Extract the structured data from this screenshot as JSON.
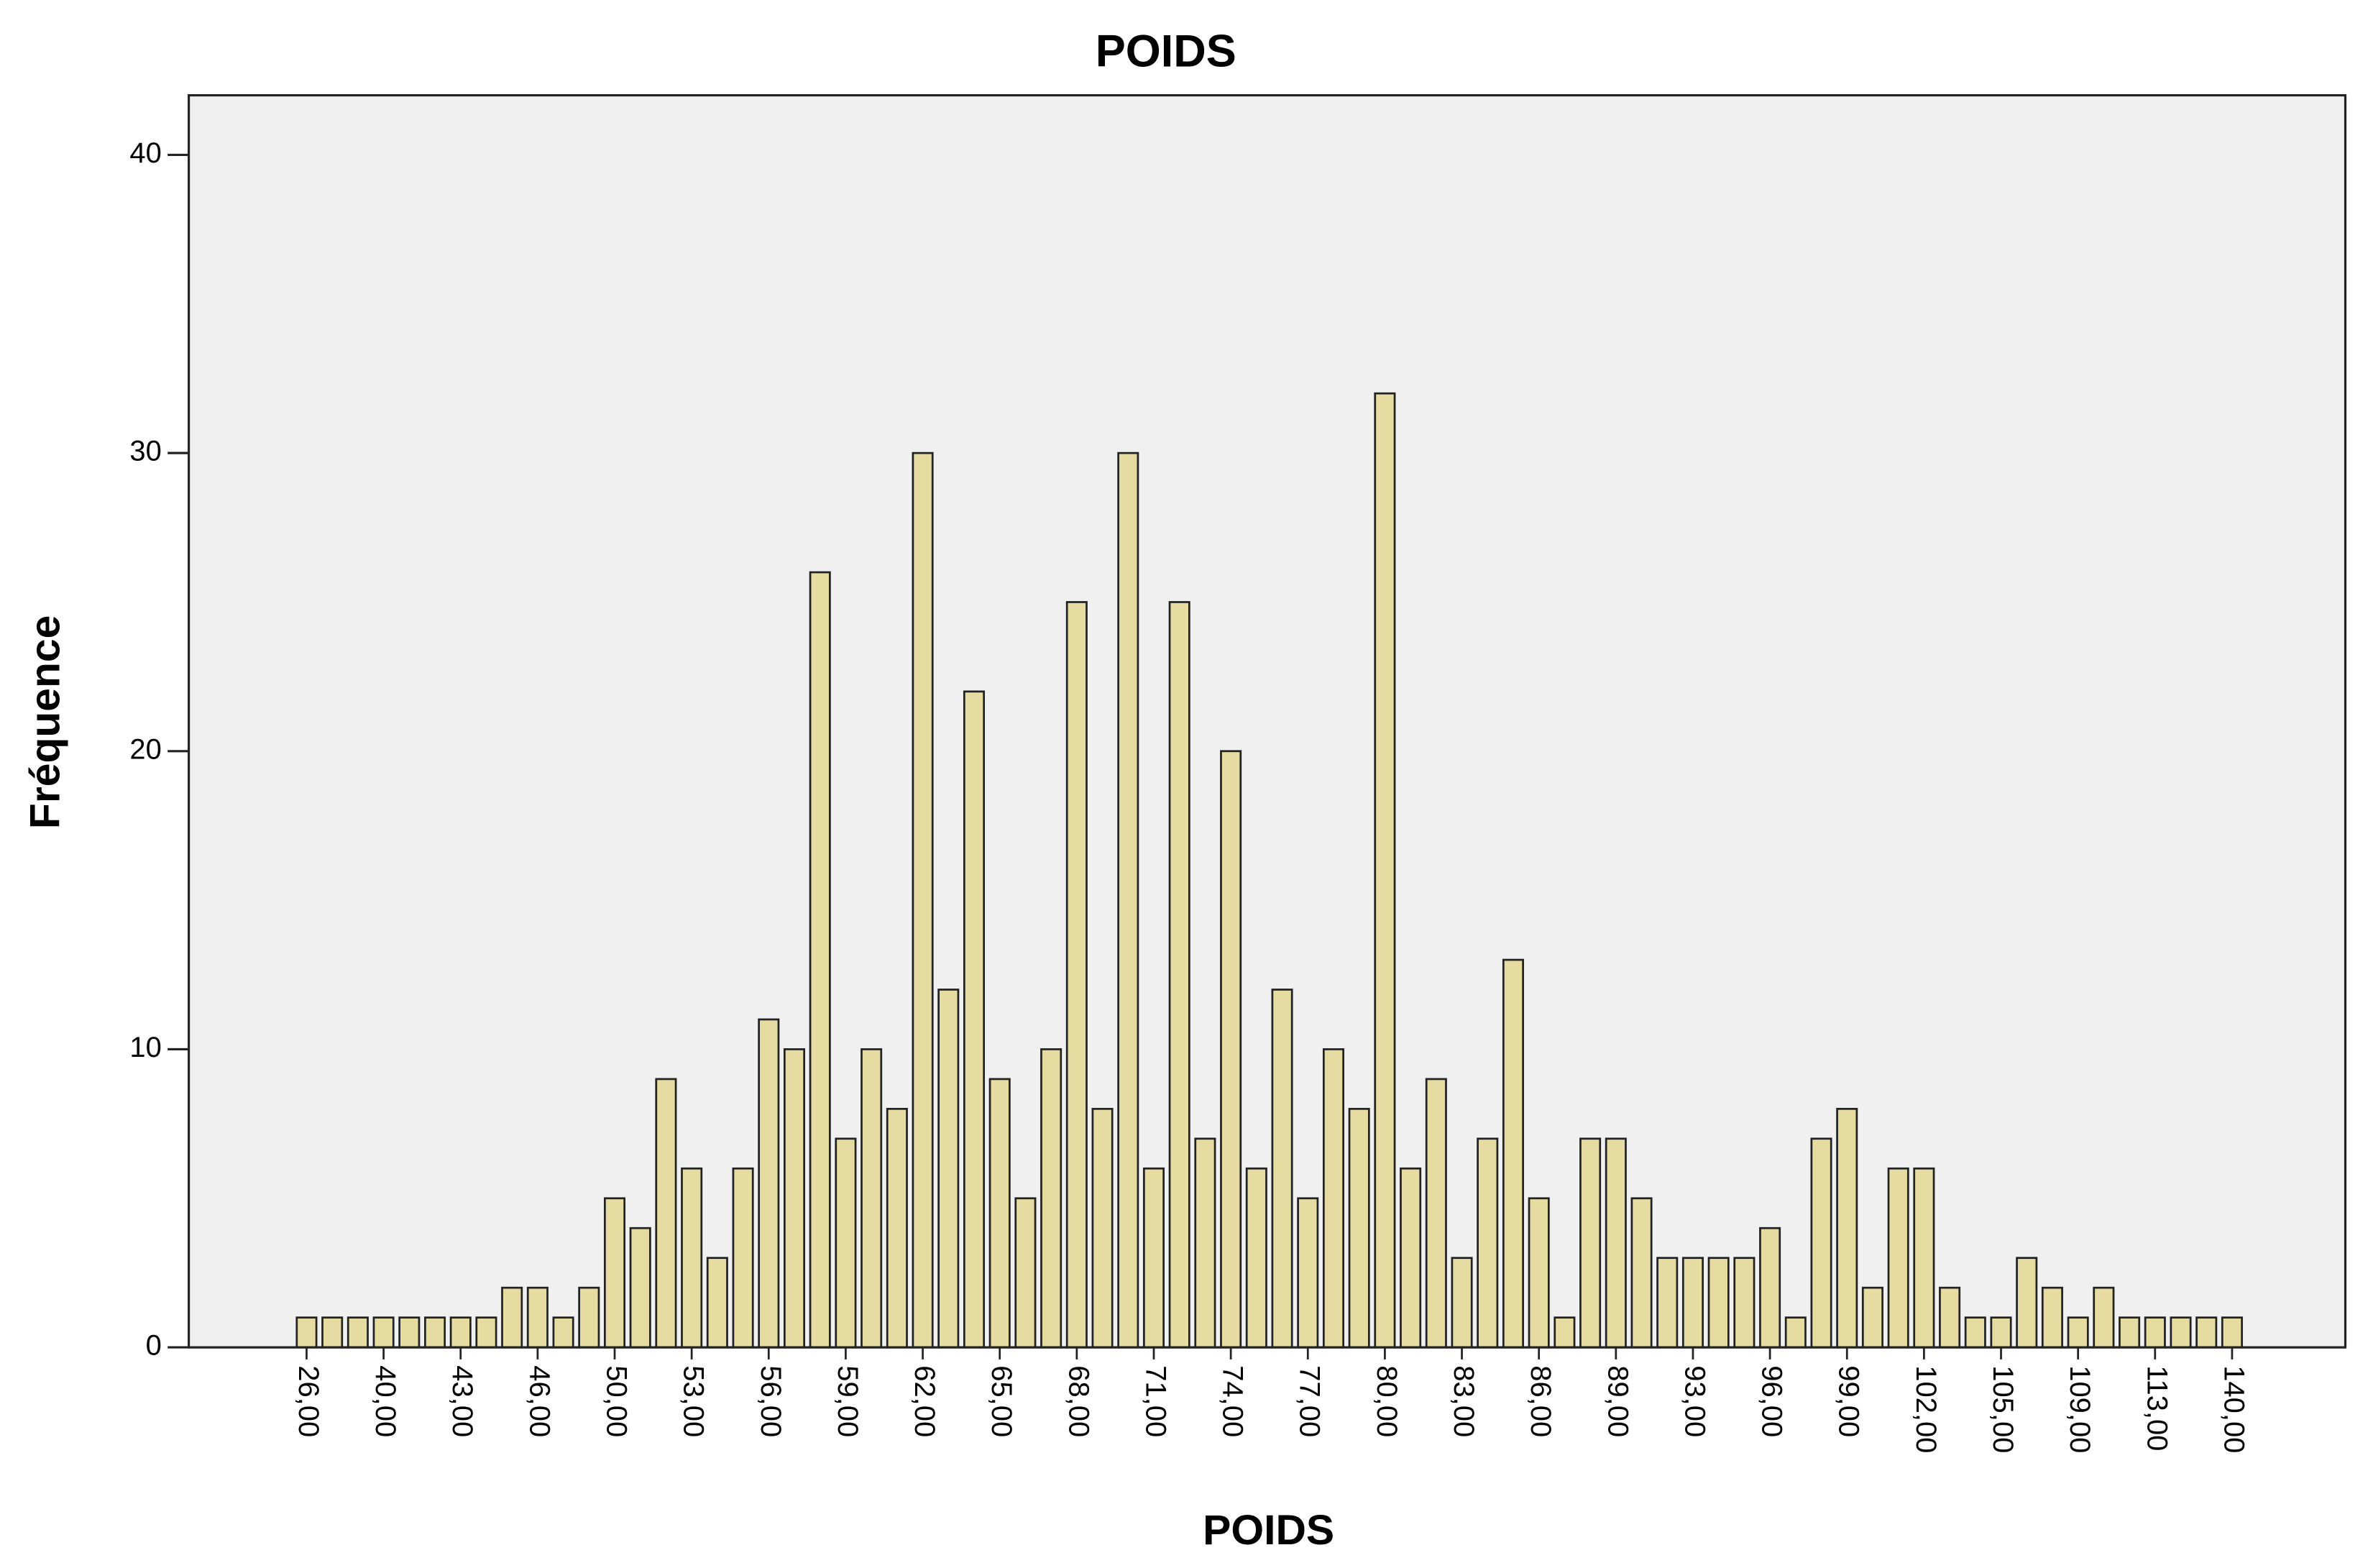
{
  "chart_data": {
    "type": "bar",
    "title": "POIDS",
    "x_label": "POIDS",
    "y_label": "Fréquence",
    "categories": [
      "26,00",
      null,
      null,
      "40,00",
      null,
      null,
      "43,00",
      null,
      null,
      "46,00",
      null,
      null,
      "50,00",
      null,
      null,
      "53,00",
      null,
      null,
      "56,00",
      null,
      null,
      "59,00",
      null,
      null,
      "62,00",
      null,
      null,
      "65,00",
      null,
      null,
      "68,00",
      null,
      null,
      "71,00",
      null,
      null,
      "74,00",
      null,
      null,
      "77,00",
      null,
      null,
      "80,00",
      null,
      null,
      "83,00",
      null,
      null,
      "86,00",
      null,
      null,
      "89,00",
      null,
      null,
      "93,00",
      null,
      null,
      "96,00",
      null,
      null,
      "99,00",
      null,
      null,
      "102,00",
      null,
      null,
      "105,00",
      null,
      null,
      "109,00",
      null,
      null,
      "113,00",
      null,
      null,
      "140,00"
    ],
    "values": [
      1,
      1,
      1,
      1,
      1,
      1,
      1,
      1,
      2,
      2,
      1,
      2,
      5,
      4,
      9,
      6,
      3,
      6,
      11,
      10,
      26,
      7,
      10,
      8,
      30,
      12,
      22,
      9,
      5,
      10,
      25,
      8,
      30,
      6,
      25,
      7,
      20,
      6,
      12,
      5,
      10,
      8,
      32,
      6,
      9,
      3,
      7,
      13,
      5,
      1,
      7,
      7,
      5,
      3,
      3,
      3,
      3,
      4,
      1,
      7,
      8,
      2,
      6,
      6,
      2,
      1,
      1,
      3,
      2,
      1,
      2,
      1,
      1,
      1,
      1,
      1
    ],
    "color": "#e6dca2",
    "ylim": [
      0,
      42
    ],
    "yticks": [
      0,
      10,
      20,
      30,
      40
    ],
    "grid": false
  }
}
